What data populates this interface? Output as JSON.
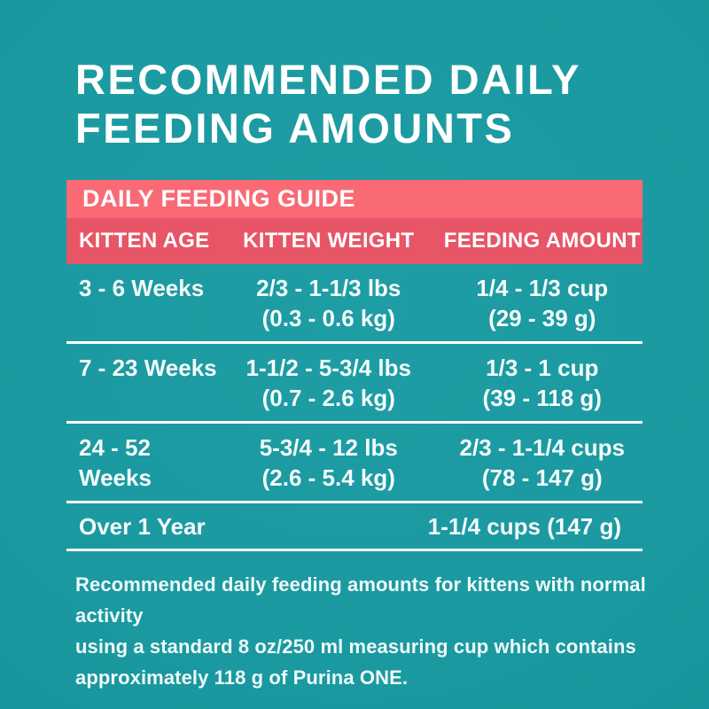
{
  "colors": {
    "background_teal": "#1a99a0",
    "guide_bar_pink": "#f96a75",
    "column_bar_pink": "#e75567",
    "text_white": "#ffffff",
    "divider_white": "#ffffff"
  },
  "title": {
    "line1": "RECOMMENDED DAILY",
    "line2": "FEEDING AMOUNTS"
  },
  "chart_data": {
    "type": "table",
    "title": "DAILY FEEDING GUIDE",
    "columns": [
      "KITTEN AGE",
      "KITTEN WEIGHT",
      "FEEDING AMOUNT"
    ],
    "rows": [
      {
        "age": "3 - 6 Weeks",
        "weight": "2/3 - 1-1/3 lbs",
        "weight_metric": "(0.3 - 0.6 kg)",
        "amount": "1/4 - 1/3 cup",
        "amount_metric": "(29 - 39 g)"
      },
      {
        "age": "7 - 23 Weeks",
        "weight": "1-1/2 - 5-3/4 lbs",
        "weight_metric": "(0.7 - 2.6 kg)",
        "amount": "1/3 - 1 cup",
        "amount_metric": "(39 - 118 g)"
      },
      {
        "age": "24 - 52 Weeks",
        "weight": "5-3/4 - 12 lbs",
        "weight_metric": "(2.6 - 5.4 kg)",
        "amount": "2/3 - 1-1/4 cups",
        "amount_metric": "(78 - 147 g)"
      },
      {
        "age": "Over 1 Year",
        "weight": "",
        "weight_metric": "",
        "amount": "1-1/4 cups (147 g)",
        "amount_metric": ""
      }
    ]
  },
  "footnote": {
    "line1": "Recommended daily feeding amounts for kittens with normal activity",
    "line2": "using a standard 8 oz/250 ml measuring cup which contains",
    "line3": "approximately 118 g of Purina ONE.",
    "full_text": "Recommended daily feeding amounts for kittens with normal activity using a standard 8 oz/250 ml measuring cup which contains approximately 118 g of Purina ONE."
  }
}
